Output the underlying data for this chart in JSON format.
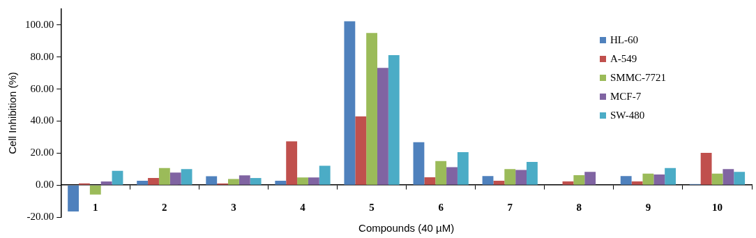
{
  "chart_data": {
    "type": "bar",
    "xlabel": "Compounds (40 µM)",
    "ylabel": "Cell Inhibition (%)",
    "categories": [
      "1",
      "2",
      "3",
      "4",
      "5",
      "6",
      "7",
      "8",
      "9",
      "10"
    ],
    "series": [
      {
        "name": "HL-60",
        "color": "#4f81bd",
        "values": [
          -16.5,
          2.7,
          5.5,
          2.7,
          102.4,
          26.8,
          5.6,
          0,
          5.6,
          0.6
        ]
      },
      {
        "name": "A-549",
        "color": "#c0504d",
        "values": [
          1.0,
          4.4,
          1.0,
          27.3,
          42.9,
          4.9,
          2.7,
          2.3,
          2.3,
          20.1
        ]
      },
      {
        "name": "SMMC-7721",
        "color": "#9bbb59",
        "values": [
          -5.9,
          10.6,
          3.8,
          4.8,
          95.1,
          15.0,
          10.0,
          6.2,
          7.2,
          7.2
        ]
      },
      {
        "name": "MCF-7",
        "color": "#8064a2",
        "values": [
          2.3,
          7.8,
          6.1,
          4.8,
          73.3,
          11.2,
          9.5,
          8.3,
          6.6,
          10.0
        ]
      },
      {
        "name": "SW-480",
        "color": "#4bacc6",
        "values": [
          8.9,
          10.0,
          4.4,
          12.1,
          81.2,
          20.6,
          14.5,
          0,
          10.6,
          8.3
        ]
      }
    ],
    "ylim": [
      -20,
      110
    ],
    "yticks": [
      {
        "value": -20,
        "label": "-20.00"
      },
      {
        "value": 0,
        "label": "0.00"
      },
      {
        "value": 20,
        "label": "20.00"
      },
      {
        "value": 40,
        "label": "40.00"
      },
      {
        "value": 60,
        "label": "60.00"
      },
      {
        "value": 80,
        "label": "80.00"
      },
      {
        "value": 100,
        "label": "100.00"
      }
    ],
    "grid": false,
    "legend": "top right"
  }
}
